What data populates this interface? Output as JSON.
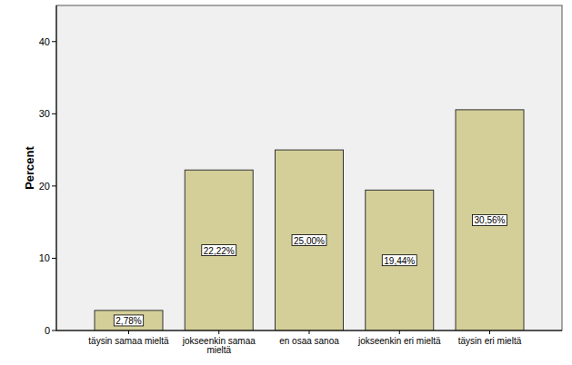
{
  "chart_data": {
    "type": "bar",
    "y_label": "Percent",
    "categories": [
      "täysin samaa mieltä",
      "jokseenkin samaa mieltä",
      "en osaa sanoa",
      "jokseenkin eri mieltä",
      "täysin eri mieltä"
    ],
    "values": [
      2.78,
      22.22,
      25.0,
      19.44,
      30.56
    ],
    "value_labels": [
      "2,78%",
      "22,22%",
      "25,00%",
      "19,44%",
      "30,56%"
    ],
    "color": "#d4cf98",
    "ylim": [
      0,
      45
    ],
    "yticks": [
      0,
      10,
      20,
      30,
      40
    ],
    "grid": false,
    "data_labels": true
  }
}
